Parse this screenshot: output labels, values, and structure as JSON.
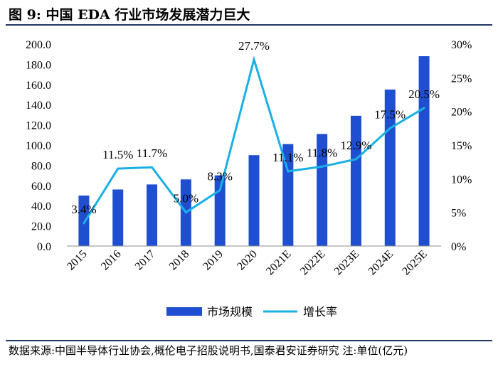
{
  "figure": {
    "title": "图 9:  中国 EDA 行业市场发展潜力巨大",
    "source": "数据来源:中国半导体行业协会,概伦电子招股说明书,国泰君安证券研究 注:单位(亿元)"
  },
  "chart_data": {
    "type": "bar",
    "categories": [
      "2015",
      "2016",
      "2017",
      "2018",
      "2019",
      "2020",
      "2021E",
      "2022E",
      "2023E",
      "2024E",
      "2025E"
    ],
    "series": [
      {
        "name": "市场规模",
        "type": "bar",
        "axis": "left",
        "color": "#1f4fd0",
        "values": [
          50.0,
          56.0,
          61.0,
          66.0,
          70.0,
          90.0,
          101.0,
          111.0,
          129.0,
          155.0,
          188.0
        ]
      },
      {
        "name": "增长率",
        "type": "line",
        "axis": "right",
        "color": "#1ab0e6",
        "values": [
          3.4,
          11.5,
          11.7,
          5.0,
          8.3,
          27.7,
          11.1,
          11.8,
          12.9,
          17.5,
          20.5
        ],
        "labels": [
          "3.4%",
          "11.5%",
          "11.7%",
          "5.0%",
          "8.3%",
          "27.7%",
          "11.1%",
          "11.8%",
          "12.9%",
          "17.5%",
          "20.5%"
        ]
      }
    ],
    "y_left": {
      "lim": [
        0,
        200
      ],
      "ticks": [
        "0.0",
        "20.0",
        "40.0",
        "60.0",
        "80.0",
        "100.0",
        "120.0",
        "140.0",
        "160.0",
        "180.0",
        "200.0"
      ]
    },
    "y_right": {
      "lim": [
        0,
        30
      ],
      "ticks": [
        "0%",
        "5%",
        "10%",
        "15%",
        "20%",
        "25%",
        "30%"
      ]
    },
    "legend": {
      "position": "bottom"
    },
    "grid": false
  }
}
